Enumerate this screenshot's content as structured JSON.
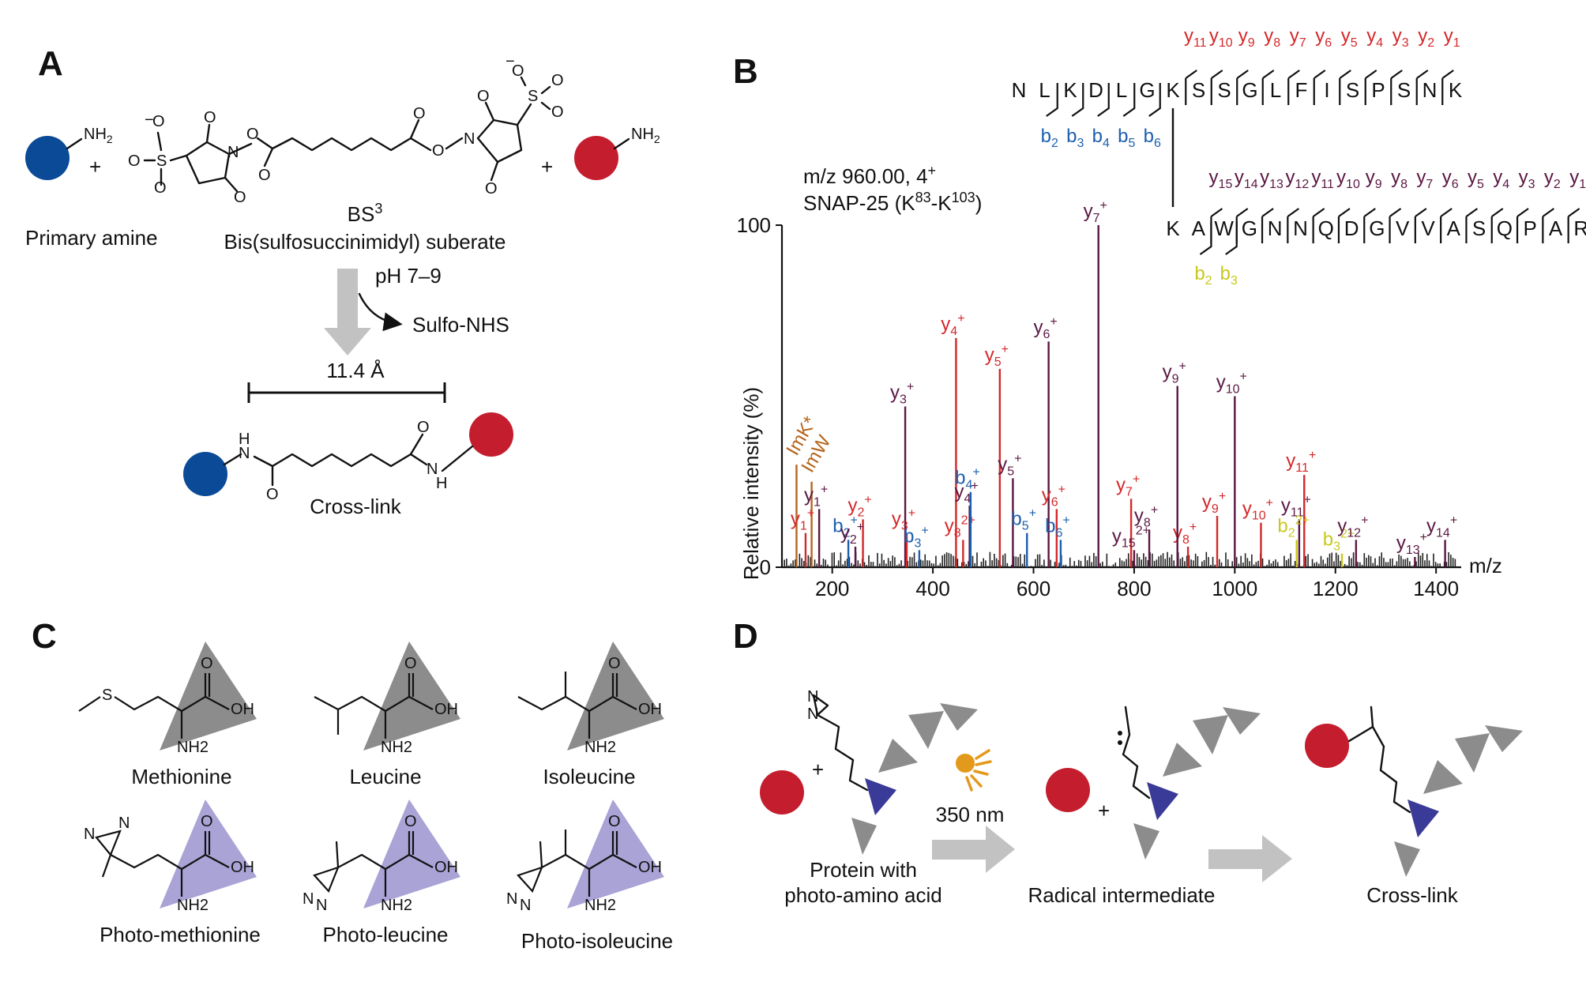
{
  "panels": {
    "A": "A",
    "B": "B",
    "C": "C",
    "D": "D"
  },
  "colors": {
    "blue": "#0a4a97",
    "red": "#c41e2e",
    "y_ion": "#d4282a",
    "b_ion": "#1c5fae",
    "dark_y": "#5a1742",
    "b_alpha": "#c8c81e",
    "imm": "#b5651d",
    "grey_tri": "#8c8c8c",
    "purple_tri": "#a9a3d6",
    "pep_tri": "#3a3a98",
    "arrow_grey": "#c2c2c2",
    "sun": "#e39a1c"
  },
  "panelA": {
    "nh2": "NH2",
    "nh2_sub": "2",
    "plus": "+",
    "reagent_name": "BS",
    "reagent_sup": "3",
    "reagent_full": "Bis(sulfosuccinimidyl) suberate",
    "primary_amine": "Primary amine",
    "ph": "pH 7–9",
    "leaving": "Sulfo-NHS",
    "distance": "11.4 Å",
    "crosslink": "Cross-link",
    "atoms": {
      "O": "O",
      "N": "N",
      "S": "S",
      "H": "H",
      "minus": "−"
    }
  },
  "panelB": {
    "precursor": "m/z 960.00, 4",
    "precursor_charge": "+",
    "protein": "SNAP-25 (K",
    "protein_sup1": "83",
    "protein_mid": "-K",
    "protein_sup2": "103",
    "protein_end": ")",
    "ylabel": "Relative intensity (%)",
    "xlabel": "m/z",
    "pep1": [
      "N",
      "L",
      "K",
      "D",
      "L",
      "G",
      "K",
      "S",
      "S",
      "G",
      "L",
      "F",
      "I",
      "S",
      "P",
      "S",
      "N",
      "K"
    ],
    "pep2": [
      "K",
      "A",
      "W",
      "G",
      "N",
      "N",
      "Q",
      "D",
      "G",
      "V",
      "V",
      "A",
      "S",
      "Q",
      "P",
      "A",
      "R"
    ],
    "pep1_y": [
      "11",
      "10",
      "9",
      "8",
      "7",
      "6",
      "5",
      "4",
      "3",
      "2",
      "1"
    ],
    "pep1_b": [
      "2",
      "3",
      "4",
      "5",
      "6"
    ],
    "pep2_y": [
      "15",
      "14",
      "13",
      "12",
      "11",
      "10",
      "9",
      "8",
      "7",
      "6",
      "5",
      "4",
      "3",
      "2",
      "1"
    ],
    "pep2_b": [
      "2",
      "3"
    ]
  },
  "chart_data": {
    "type": "bar",
    "title": "",
    "xlabel": "m/z",
    "ylabel": "Relative intensity (%)",
    "xlim": [
      100,
      1450
    ],
    "ylim": [
      0,
      100
    ],
    "xticks": [
      200,
      400,
      600,
      800,
      1000,
      1200,
      1400
    ],
    "yticks": [
      0,
      100
    ],
    "grid": false,
    "peaks": [
      {
        "mz": 129,
        "y": 30,
        "group": "imm",
        "label": "ImK*"
      },
      {
        "mz": 159,
        "y": 25,
        "group": "imm",
        "label": "ImW"
      },
      {
        "mz": 147,
        "y": 10,
        "group": "y",
        "label": "y1+"
      },
      {
        "mz": 174,
        "y": 17,
        "group": "ydark",
        "label": "y1+"
      },
      {
        "mz": 232,
        "y": 8,
        "group": "b",
        "label": "b2+"
      },
      {
        "mz": 261,
        "y": 14,
        "group": "y",
        "label": "y2+"
      },
      {
        "mz": 246,
        "y": 6,
        "group": "ydark",
        "label": "y2+"
      },
      {
        "mz": 345,
        "y": 47,
        "group": "ydark",
        "label": "y3+"
      },
      {
        "mz": 348,
        "y": 10,
        "group": "y",
        "label": "y3+"
      },
      {
        "mz": 373,
        "y": 5,
        "group": "b",
        "label": "b3+"
      },
      {
        "mz": 446,
        "y": 67,
        "group": "y",
        "label": "y4+"
      },
      {
        "mz": 460,
        "y": 8,
        "group": "y",
        "label": "y8 2+"
      },
      {
        "mz": 473,
        "y": 18,
        "group": "ydark",
        "label": "y4+"
      },
      {
        "mz": 475,
        "y": 22,
        "group": "b",
        "label": "b4+"
      },
      {
        "mz": 533,
        "y": 58,
        "group": "y",
        "label": "y5+"
      },
      {
        "mz": 559,
        "y": 26,
        "group": "ydark",
        "label": "y5+"
      },
      {
        "mz": 587,
        "y": 10,
        "group": "b",
        "label": "b5+"
      },
      {
        "mz": 630,
        "y": 66,
        "group": "ydark",
        "label": "y6+"
      },
      {
        "mz": 646,
        "y": 17,
        "group": "y",
        "label": "y6+"
      },
      {
        "mz": 654,
        "y": 8,
        "group": "b",
        "label": "b6+"
      },
      {
        "mz": 729,
        "y": 100,
        "group": "ydark",
        "label": "y7+"
      },
      {
        "mz": 794,
        "y": 20,
        "group": "y",
        "label": "y7+"
      },
      {
        "mz": 800,
        "y": 5,
        "group": "ydark",
        "label": "y15 2+"
      },
      {
        "mz": 830,
        "y": 11,
        "group": "ydark",
        "label": "y8+"
      },
      {
        "mz": 907,
        "y": 6,
        "group": "y",
        "label": "y8+"
      },
      {
        "mz": 886,
        "y": 53,
        "group": "ydark",
        "label": "y9+"
      },
      {
        "mz": 965,
        "y": 15,
        "group": "y",
        "label": "y9+"
      },
      {
        "mz": 1000,
        "y": 50,
        "group": "ydark",
        "label": "y10+"
      },
      {
        "mz": 1052,
        "y": 13,
        "group": "y",
        "label": "y10+"
      },
      {
        "mz": 1128,
        "y": 14,
        "group": "ydark",
        "label": "y11+"
      },
      {
        "mz": 1138,
        "y": 27,
        "group": "y",
        "label": "y11+"
      },
      {
        "mz": 1123,
        "y": 8,
        "group": "balpha",
        "label": "b2 2+"
      },
      {
        "mz": 1213,
        "y": 4,
        "group": "balpha",
        "label": "b3 2+"
      },
      {
        "mz": 1241,
        "y": 8,
        "group": "ydark",
        "label": "y12+"
      },
      {
        "mz": 1358,
        "y": 3,
        "group": "ydark",
        "label": "y13+"
      },
      {
        "mz": 1418,
        "y": 8,
        "group": "ydark",
        "label": "y14+"
      }
    ]
  },
  "panelC": {
    "names": [
      "Methionine",
      "Leucine",
      "Isoleucine",
      "Photo-methionine",
      "Photo-leucine",
      "Photo-isoleucine"
    ],
    "atoms": {
      "O": "O",
      "OH": "OH",
      "NH2": "NH2",
      "S": "S",
      "N": "N"
    }
  },
  "panelD": {
    "protein": "Protein with",
    "protein2": "photo-amino acid",
    "wavelength": "350 nm",
    "radical": "Radical intermediate",
    "crosslink": "Cross-link",
    "plus": "+",
    "N": "N"
  }
}
